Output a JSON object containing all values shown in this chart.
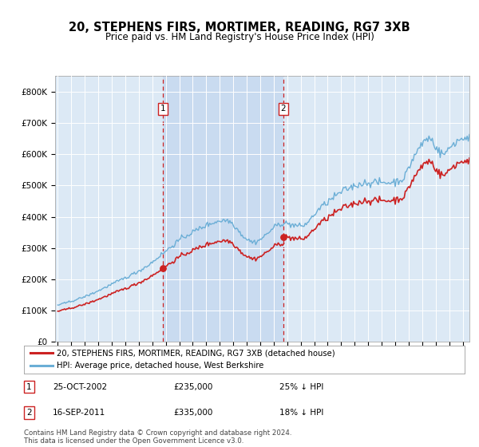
{
  "title": "20, STEPHENS FIRS, MORTIMER, READING, RG7 3XB",
  "subtitle": "Price paid vs. HM Land Registry's House Price Index (HPI)",
  "ylabel_ticks": [
    "£0",
    "£100K",
    "£200K",
    "£300K",
    "£400K",
    "£500K",
    "£600K",
    "£700K",
    "£800K"
  ],
  "ylim": [
    0,
    850000
  ],
  "xlim_start": 1994.8,
  "xlim_end": 2025.5,
  "plot_bg_color": "#dce9f5",
  "hpi_color": "#6baed6",
  "price_color": "#cc2222",
  "sale1_date": 2002.81,
  "sale1_price": 235000,
  "sale2_date": 2011.71,
  "sale2_price": 335000,
  "legend_label1": "20, STEPHENS FIRS, MORTIMER, READING, RG7 3XB (detached house)",
  "legend_label2": "HPI: Average price, detached house, West Berkshire",
  "footnote": "Contains HM Land Registry data © Crown copyright and database right 2024.\nThis data is licensed under the Open Government Licence v3.0.",
  "shade_color": "#c6d9f0"
}
